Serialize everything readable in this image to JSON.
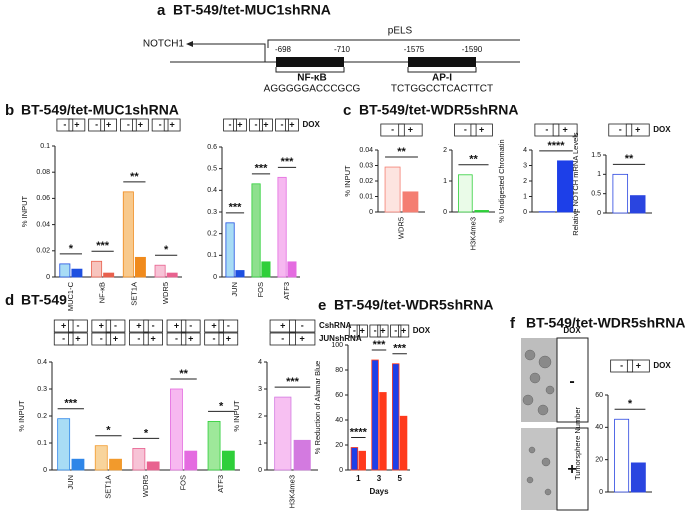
{
  "diagram": {
    "title": "BT-549/tet-MUC1shRNA",
    "promoter": "pELS",
    "gene": "NOTCH1",
    "sites": [
      {
        "name": "NF-κB",
        "start": "-698",
        "end": "-710",
        "sequence": "AGGGGGACCCGCG"
      },
      {
        "name": "AP-I",
        "start": "-1575",
        "end": "-1590",
        "sequence": "TCTGGCCTCACTTCT"
      }
    ]
  },
  "panels": [
    {
      "letter": "a",
      "title": "BT-549/tet-MUC1shRNA"
    },
    {
      "letter": "b",
      "title": "BT-549/tet-MUC1shRNA"
    },
    {
      "letter": "c",
      "title": "BT-549/tet-WDR5shRNA"
    },
    {
      "letter": "d",
      "title": "BT-549"
    },
    {
      "letter": "e",
      "title": "BT-549/tet-WDR5shRNA"
    },
    {
      "letter": "f",
      "title": "BT-549/tet-WDR5shRNA"
    }
  ],
  "chart_data": [
    {
      "type": "bar",
      "ylabel": "% INPUT",
      "categories": [
        "MUC1-C",
        "NF-κB",
        "SET1A",
        "WDR5"
      ],
      "series": [
        {
          "values": [
            0.01,
            0.012,
            0.065,
            0.009
          ]
        },
        {
          "values": [
            0.006,
            0.003,
            0.015,
            0.003
          ]
        }
      ],
      "colors": [
        [
          "#a8dcf5",
          "#1d4fe0"
        ],
        [
          "#f7c4bd",
          "#e8604d"
        ],
        [
          "#f8c98c",
          "#f08a1c"
        ],
        [
          "#f7c3d6",
          "#e8628f"
        ]
      ],
      "significance": [
        "*",
        "***",
        "**",
        "*"
      ],
      "treatments": [
        {
          "signs": [
            "-",
            "+"
          ]
        }
      ],
      "ylim": [
        0,
        0.1
      ],
      "yticks": [
        0,
        0.02,
        0.04,
        0.06,
        0.08,
        0.1
      ]
    },
    {
      "type": "bar",
      "categories": [
        "JUN",
        "FOS",
        "ATF3"
      ],
      "series": [
        {
          "values": [
            0.25,
            0.43,
            0.46
          ]
        },
        {
          "values": [
            0.03,
            0.07,
            0.07
          ]
        }
      ],
      "colors": [
        [
          "#a8dcf5",
          "#1d4fe0"
        ],
        [
          "#8ee08e",
          "#2fcf3a"
        ],
        [
          "#f6b8f0",
          "#e46ce0"
        ]
      ],
      "significance": [
        "***",
        "***",
        "***"
      ],
      "treatments": [
        {
          "label": "DOX",
          "signs": [
            "-",
            "+"
          ]
        }
      ],
      "ylim": [
        0,
        0.6
      ],
      "yticks": [
        0,
        0.1,
        0.2,
        0.3,
        0.4,
        0.5,
        0.6
      ]
    },
    {
      "type": "bar",
      "ylabel": "% INPUT",
      "categories": [
        "WDR5"
      ],
      "series": [
        {
          "values": [
            0.029
          ]
        },
        {
          "values": [
            0.013
          ]
        }
      ],
      "colors": [
        [
          "#fde4e0",
          "#f47e72"
        ]
      ],
      "significance": [
        "**"
      ],
      "treatments": [
        {
          "signs": [
            "-",
            "+"
          ]
        }
      ],
      "ylim": [
        0,
        0.04
      ],
      "yticks": [
        0,
        0.01,
        0.02,
        0.03,
        0.04
      ]
    },
    {
      "type": "bar",
      "categories": [
        "H3K4me3"
      ],
      "series": [
        {
          "values": [
            1.2
          ]
        },
        {
          "values": [
            0.05
          ]
        }
      ],
      "colors": [
        [
          "#eafbe8",
          "#2fcf3a"
        ]
      ],
      "significance": [
        "**"
      ],
      "treatments": [
        {
          "signs": [
            "-",
            "+"
          ]
        }
      ],
      "ylim": [
        0,
        2
      ],
      "yticks": [
        0,
        1,
        2
      ]
    },
    {
      "type": "bar",
      "ylabel": "% Undigested Chromatin",
      "categories": [
        null
      ],
      "series": [
        {
          "values": [
            0.02
          ]
        },
        {
          "values": [
            3.3
          ]
        }
      ],
      "colors": [
        [
          "#e6ebff",
          "#1d3fe8"
        ]
      ],
      "significance": [
        "****"
      ],
      "treatments": [
        {
          "signs": [
            "-",
            "+"
          ]
        }
      ],
      "ylim": [
        0,
        4
      ],
      "yticks": [
        0,
        1,
        2,
        3,
        4
      ]
    },
    {
      "type": "bar",
      "ylabel": "Relative NOTCH mRNA Levels",
      "categories": [
        null
      ],
      "series": [
        {
          "values": [
            1.0
          ]
        },
        {
          "values": [
            0.45
          ]
        }
      ],
      "colors": [
        [
          "#ffffff",
          "#2a45e0"
        ]
      ],
      "significance": [
        "**"
      ],
      "treatments": [
        {
          "label": "DOX",
          "signs": [
            "-",
            "+"
          ]
        }
      ],
      "ylim": [
        0,
        1.5
      ],
      "yticks": [
        0,
        0.5,
        1,
        1.5
      ]
    },
    {
      "type": "bar",
      "ylabel": "% INPUT",
      "categories": [
        "JUN",
        "SET1A",
        "WDR5",
        "FOS",
        "ATF3"
      ],
      "series": [
        {
          "values": [
            0.19,
            0.09,
            0.08,
            0.3,
            0.18
          ]
        },
        {
          "values": [
            0.04,
            0.04,
            0.03,
            0.07,
            0.07
          ]
        }
      ],
      "colors": [
        [
          "#a8dcf5",
          "#2f86e8"
        ],
        [
          "#f8d49c",
          "#f29a2c"
        ],
        [
          "#f7c3d6",
          "#e8628f"
        ],
        [
          "#f7b8f0",
          "#e46ce0"
        ],
        [
          "#9ee89a",
          "#2fcf3a"
        ]
      ],
      "significance": [
        "***",
        "*",
        "*",
        "**",
        "*"
      ],
      "treatments": [
        {
          "signs": [
            "+",
            "-"
          ]
        },
        {
          "signs": [
            "-",
            "+"
          ]
        }
      ],
      "ylim": [
        0,
        0.4
      ],
      "yticks": [
        0,
        0.1,
        0.2,
        0.3,
        0.4
      ]
    },
    {
      "type": "bar",
      "ylabel": "% INPUT",
      "categories": [
        "H3K4me3"
      ],
      "series": [
        {
          "values": [
            2.7
          ]
        },
        {
          "values": [
            1.1
          ]
        }
      ],
      "colors": [
        [
          "#f7c0f2",
          "#d37ae0"
        ]
      ],
      "significance": [
        "***"
      ],
      "treatments": [
        {
          "label": "CshRNA",
          "signs": [
            "+",
            "-"
          ]
        },
        {
          "label": "JUNshRNA",
          "signs": [
            "-",
            "+"
          ]
        }
      ],
      "ylim": [
        0,
        4
      ],
      "yticks": [
        0,
        1,
        2,
        3,
        4
      ]
    },
    {
      "type": "bar",
      "ylabel": "% Reduction of Alamar Blue",
      "xlabel": "Days",
      "categories": [
        "1",
        "3",
        "5"
      ],
      "series": [
        {
          "values": [
            18,
            88,
            85
          ]
        },
        {
          "values": [
            15,
            62,
            43
          ]
        }
      ],
      "colors": [
        [
          "#1d3fe8",
          "#ff3a1c"
        ],
        [
          "#1d3fe8",
          "#ff3a1c"
        ],
        [
          "#1d3fe8",
          "#ff3a1c"
        ]
      ],
      "significance": [
        "****",
        "***",
        "***"
      ],
      "treatments": [
        {
          "label": "DOX",
          "signs": [
            "-",
            "+"
          ]
        }
      ],
      "ylim": [
        0,
        100
      ],
      "yticks": [
        0,
        20,
        40,
        60,
        80,
        100
      ]
    },
    {
      "type": "bar",
      "ylabel": "Tumorsphere Number",
      "categories": [
        null
      ],
      "series": [
        {
          "values": [
            45
          ]
        },
        {
          "values": [
            18
          ]
        }
      ],
      "colors": [
        [
          "#ffffff",
          "#2a45e0"
        ]
      ],
      "significance": [
        "*"
      ],
      "treatments": [
        {
          "label": "DOX",
          "signs": [
            "-",
            "+"
          ]
        }
      ],
      "ylim": [
        0,
        60
      ],
      "yticks": [
        0,
        20,
        40,
        60
      ]
    }
  ],
  "image_panel": {
    "label": "DOX",
    "rows": [
      "-",
      "+"
    ]
  }
}
